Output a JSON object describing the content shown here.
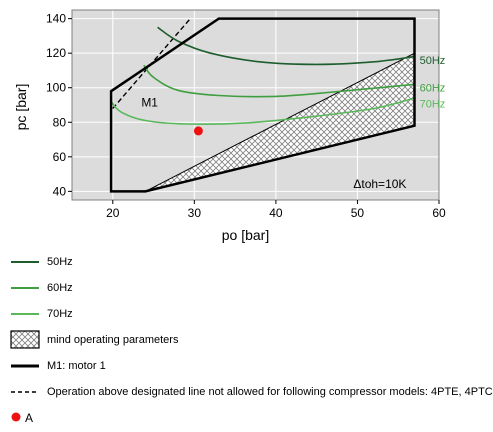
{
  "chart_data": {
    "type": "line",
    "xlabel": "po [bar]",
    "ylabel": "pc [bar]",
    "xlim": [
      15,
      60
    ],
    "ylim": [
      35,
      145
    ],
    "xticks": [
      20,
      30,
      40,
      50,
      60
    ],
    "yticks": [
      40,
      60,
      80,
      100,
      120,
      140
    ],
    "grid": true,
    "annotation": "Δtoh=10K",
    "envelope_label": "M1",
    "envelope": [
      [
        19.8,
        40
      ],
      [
        19.8,
        98
      ],
      [
        33,
        140
      ],
      [
        57,
        140
      ],
      [
        57,
        78
      ],
      [
        24,
        40
      ]
    ],
    "hatched_region": [
      [
        24,
        40
      ],
      [
        57,
        78
      ],
      [
        57,
        120
      ]
    ],
    "dashed_line": [
      [
        20,
        88
      ],
      [
        29.5,
        140
      ]
    ],
    "series": [
      {
        "name": "50Hz",
        "color": "#1e5e2e",
        "label_pos": [
          57.5,
          116
        ],
        "points": [
          [
            25.5,
            135
          ],
          [
            28,
            127
          ],
          [
            32,
            120
          ],
          [
            38,
            115
          ],
          [
            45,
            113.5
          ],
          [
            52,
            115
          ],
          [
            57,
            118
          ]
        ]
      },
      {
        "name": "60Hz",
        "color": "#3f9e3f",
        "label_pos": [
          57.5,
          100
        ],
        "points": [
          [
            23.8,
            113
          ],
          [
            25,
            106
          ],
          [
            28,
            98.5
          ],
          [
            33,
            95.5
          ],
          [
            40,
            95
          ],
          [
            47,
            97.5
          ],
          [
            57,
            102
          ]
        ]
      },
      {
        "name": "70Hz",
        "color": "#5ab85a",
        "label_pos": [
          57.5,
          91
        ],
        "points": [
          [
            19.8,
            92
          ],
          [
            21,
            86
          ],
          [
            24,
            81
          ],
          [
            29,
            79
          ],
          [
            36,
            79.5
          ],
          [
            44,
            83
          ],
          [
            52,
            88
          ],
          [
            57,
            94
          ]
        ]
      }
    ],
    "point": {
      "name": "A",
      "x": 30.5,
      "y": 75,
      "color": "#ee1111"
    }
  },
  "legend": [
    {
      "kind": "line",
      "color": "#1e5e2e",
      "label": "50Hz"
    },
    {
      "kind": "line",
      "color": "#3f9e3f",
      "label": "60Hz"
    },
    {
      "kind": "line",
      "color": "#5ab85a",
      "label": "70Hz"
    },
    {
      "kind": "hatch",
      "label": "mind operating parameters"
    },
    {
      "kind": "thick",
      "color": "#000000",
      "label": "M1: motor 1"
    },
    {
      "kind": "dashed",
      "color": "#000000",
      "label": "Operation above designated line not allowed for following compressor models: 4PTE, 4PTC"
    },
    {
      "kind": "point",
      "color": "#ee1111",
      "label": "A"
    }
  ]
}
